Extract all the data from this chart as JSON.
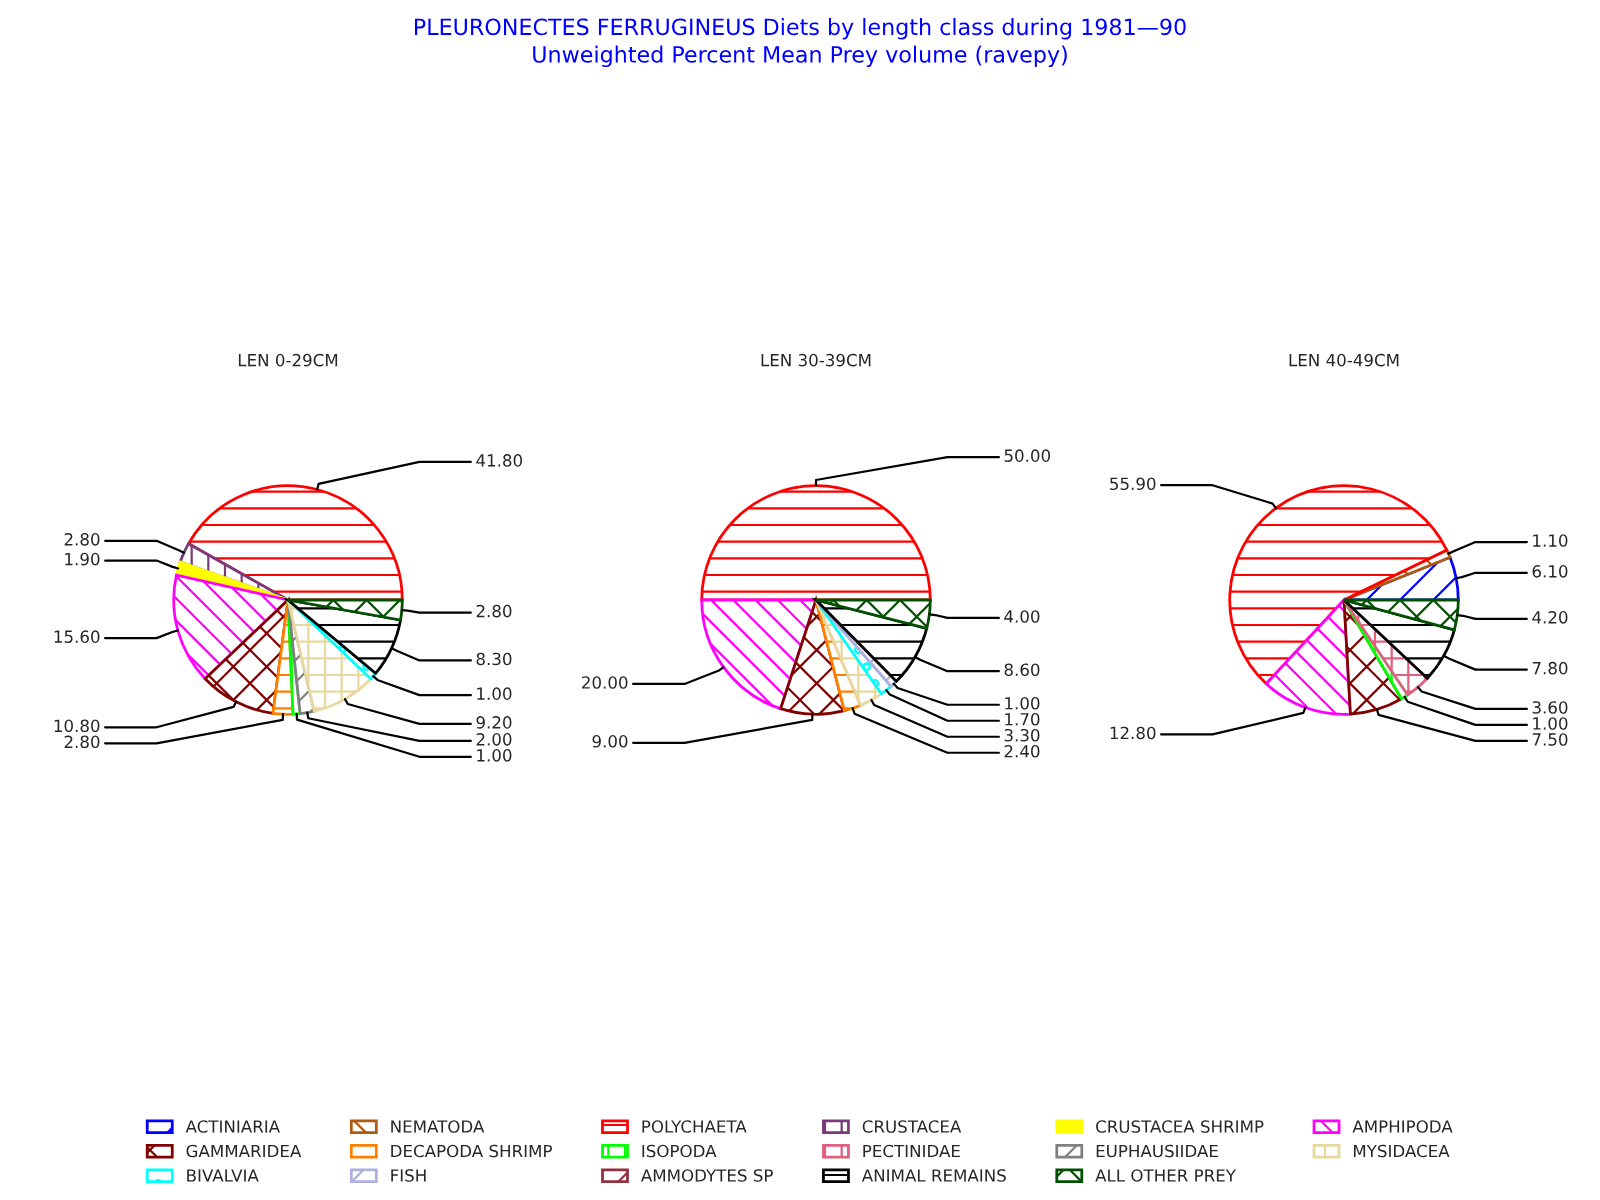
{
  "chart_data": [
    {
      "type": "pie",
      "xlabel": "LEN 0-29CM",
      "legend": "bottom",
      "categories": [
        "ACTINIARIA",
        "NEMATODA",
        "POLYCHAETA",
        "CRUSTACEA",
        "CRUSTACEA SHRIMP",
        "AMPHIPODA",
        "GAMMARIDEA",
        "DECAPODA SHRIMP",
        "ISOPODA",
        "PECTINIDAE",
        "EUPHAUSIIDAE",
        "MYSIDACEA",
        "BIVALVIA",
        "FISH",
        "AMMODYTES SP",
        "ANIMAL REMAINS",
        "ALL OTHER PREY"
      ],
      "colors": [
        "#0000ff",
        "#b05a10",
        "#ff0000",
        "#7a3a7a",
        "#ffff00",
        "#ff00ff",
        "#800000",
        "#ff8000",
        "#00ff00",
        "#e06080",
        "#808080",
        "#e8d8a0",
        "#00ffff",
        "#b0b0e0",
        "#903040",
        "#000000",
        "#005000"
      ],
      "values": [
        null,
        null,
        41.8,
        2.8,
        1.9,
        15.6,
        10.8,
        2.8,
        1.0,
        null,
        2.0,
        9.2,
        1.0,
        null,
        null,
        8.3,
        2.8
      ],
      "value_labels": [
        null,
        null,
        "41.80",
        "2.80",
        "1.90",
        "15.60",
        "10.80",
        "2.80",
        "1.00",
        null,
        "2.00",
        "9.20",
        "1.00",
        null,
        null,
        "8.30",
        "2.80"
      ]
    },
    {
      "type": "pie",
      "title": "PLEURONECTES FERRUGINEUS Diets by length class during 1981—90",
      "subtitle": "Unweighted Percent Mean Prey volume (ravepy)",
      "xlabel": "LEN 30-39CM",
      "categories": [
        null,
        null,
        null,
        null,
        null,
        null,
        null,
        null,
        null
      ],
      "colors": [
        "#ff0000",
        "#ff00ff",
        "#800000",
        "#ff8000",
        "#e8d8a0",
        "#00ffff",
        "#b0b0e0",
        "#000000",
        "#005000"
      ],
      "values": [
        50.0,
        20.0,
        9.0,
        2.4,
        3.3,
        1.7,
        1.0,
        8.6,
        4.0
      ],
      "value_labels": [
        "50.00",
        "20.00",
        "9.00",
        "2.40",
        "3.30",
        "1.70",
        "1.00",
        "8.60",
        "4.00"
      ]
    },
    {
      "type": "pie",
      "xlabel": "LEN 40-49CM",
      "categories": [
        null,
        null,
        null,
        null,
        null,
        null,
        null,
        null,
        null
      ],
      "colors": [
        "#0000ff",
        "#b05a10",
        "#ff0000",
        "#ff00ff",
        "#800000",
        "#00ff00",
        "#e06080",
        "#000000",
        "#005000"
      ],
      "values": [
        6.1,
        1.1,
        55.9,
        12.8,
        7.5,
        1.0,
        3.6,
        7.8,
        4.2
      ],
      "value_labels": [
        "6.10",
        "1.10",
        "55.90",
        "12.80",
        "7.50",
        "1.00",
        "3.60",
        "7.80",
        "4.20"
      ]
    }
  ]
}
